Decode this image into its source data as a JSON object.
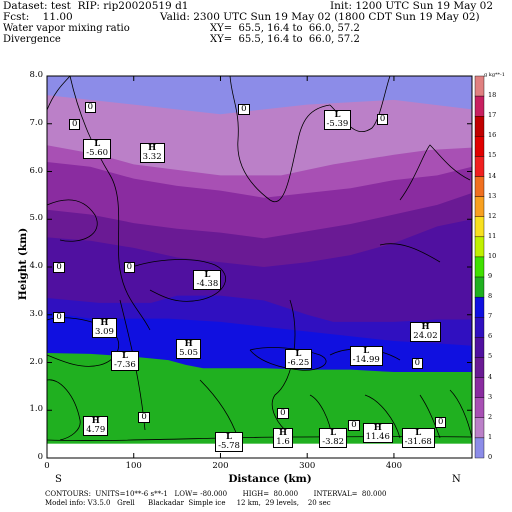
{
  "header": {
    "dataset": "Dataset: test  RIP: rip20020519 d1",
    "init": "Init: 1200 UTC Sun 19 May 02",
    "fcst": "Fcst:    11.00",
    "valid": "Valid: 2300 UTC Sun 19 May 02 (1800 CDT Sun 19 May 02)",
    "field1": "Water vapor mixing ratio",
    "xy1": "XY=  65.5, 16.4 to  66.0, 57.2",
    "field2": "Divergence",
    "xy2": "XY=  65.5, 16.4 to  66.0, 57.2"
  },
  "footer": {
    "contours": "CONTOURS:  UNITS=10**-6 s**-1   LOW= -80.000       HIGH=  80.000       INTERVAL=  80.000",
    "model": "Model info: V3.5.0   Grell      Blackadar  Simple ice     12 km,  29 levels,    20 sec"
  },
  "axis_ends": {
    "left": "S",
    "right": "N"
  },
  "colorbar": {
    "unit": "g kg**-1",
    "labels": [
      "18",
      "17",
      "16",
      "15",
      "14",
      "13",
      "12",
      "11",
      "10",
      "9",
      "8",
      "7",
      "6",
      "5",
      "4",
      "3",
      "2",
      "1",
      "0"
    ]
  },
  "colors": {
    "c18": "#e08080",
    "c17": "#c82060",
    "c16": "#c00000",
    "c15": "#e00000",
    "c14": "#f02020",
    "c13": "#f07020",
    "c12": "#f8a020",
    "c11": "#f8e020",
    "c10": "#c0f000",
    "c9": "#40e000",
    "c8": "#20b020",
    "c7": "#1010e0",
    "c6": "#3010c0",
    "c5": "#5010a0",
    "c4": "#6a1a94",
    "c3": "#8a2ca0",
    "c2": "#a850b4",
    "c1": "#bb80c8",
    "c0": "#8c8ce8"
  },
  "labels": [
    {
      "name": "contour-label-0-a",
      "text": "0"
    },
    {
      "name": "contour-label-0-b",
      "text": "0"
    },
    {
      "name": "contour-label-0-c",
      "text": "0"
    },
    {
      "name": "contour-label-0-d",
      "text": "0"
    },
    {
      "name": "contour-label-0-e",
      "text": "0"
    },
    {
      "name": "contour-label-0-f",
      "text": "0"
    },
    {
      "name": "contour-label-0-g",
      "text": "0"
    },
    {
      "name": "contour-label-0-h",
      "text": "0"
    },
    {
      "name": "contour-label-0-i",
      "text": "0"
    },
    {
      "name": "contour-label-0-j",
      "text": "0"
    },
    {
      "name": "contour-label-0-k",
      "text": "0"
    },
    {
      "name": "contour-label-0-l",
      "text": "0"
    }
  ],
  "extrema": [
    {
      "name": "low-label-1",
      "kind": "L",
      "value": "-5.60"
    },
    {
      "name": "high-label-1",
      "kind": "H",
      "value": "3.32"
    },
    {
      "name": "low-label-2",
      "kind": "L",
      "value": "-5.39"
    },
    {
      "name": "low-label-3",
      "kind": "L",
      "value": "-4.38"
    },
    {
      "name": "high-label-2",
      "kind": "H",
      "value": "3.09"
    },
    {
      "name": "low-label-4",
      "kind": "L",
      "value": "-7.36"
    },
    {
      "name": "high-label-3",
      "kind": "H",
      "value": "5.05"
    },
    {
      "name": "low-label-5",
      "kind": "L",
      "value": "-6.25"
    },
    {
      "name": "low-label-6",
      "kind": "L",
      "value": "-14.99"
    },
    {
      "name": "high-label-4",
      "kind": "H",
      "value": "24.02"
    },
    {
      "name": "high-label-5",
      "kind": "H",
      "value": "4.79"
    },
    {
      "name": "low-label-7",
      "kind": "L",
      "value": "-5.78"
    },
    {
      "name": "high-label-6",
      "kind": "H",
      "value": "1.6"
    },
    {
      "name": "low-label-8",
      "kind": "L",
      "value": "-3.82"
    },
    {
      "name": "high-label-7",
      "kind": "H",
      "value": "11.46"
    },
    {
      "name": "low-label-9",
      "kind": "L",
      "value": "-31.68"
    }
  ],
  "chart_data": {
    "type": "heatmap",
    "title": "Water vapor mixing ratio",
    "xlabel": "Distance (km)",
    "ylabel": "Height (km)",
    "xlim": [
      0,
      490
    ],
    "ylim": [
      0,
      8
    ],
    "xticks": [
      0,
      100,
      200,
      300,
      400
    ],
    "xtick_labels": [
      "0",
      "100",
      "200",
      "300",
      "400"
    ],
    "yticks": [
      0,
      1,
      2,
      3,
      4,
      5,
      6,
      7,
      8
    ],
    "ytick_labels": [
      "0",
      "1.0",
      "2.0",
      "3.0",
      "4.0",
      "5.0",
      "6.0",
      "7.0",
      "8.0"
    ],
    "legend": "right",
    "contour_field": "Divergence",
    "contour_interval": 80,
    "layers": [
      {
        "level": 0,
        "top": [
          [
            0,
            7.6
          ],
          [
            100,
            7.4
          ],
          [
            200,
            7.2
          ],
          [
            300,
            7.4
          ],
          [
            400,
            7.5
          ],
          [
            490,
            7.3
          ]
        ]
      },
      {
        "level": 1,
        "top": [
          [
            0,
            6.55
          ],
          [
            60,
            6.35
          ],
          [
            100,
            6.15
          ],
          [
            200,
            5.92
          ],
          [
            270,
            5.92
          ],
          [
            330,
            6.15
          ],
          [
            400,
            6.35
          ],
          [
            440,
            6.45
          ],
          [
            490,
            6.5
          ]
        ]
      },
      {
        "level": 2,
        "top": [
          [
            0,
            6.2
          ],
          [
            50,
            6.1
          ],
          [
            100,
            5.85
          ],
          [
            150,
            5.7
          ],
          [
            200,
            5.6
          ],
          [
            250,
            5.45
          ],
          [
            300,
            5.55
          ],
          [
            350,
            5.65
          ],
          [
            400,
            5.82
          ],
          [
            450,
            5.92
          ],
          [
            490,
            6.1
          ]
        ]
      },
      {
        "level": 3,
        "top": [
          [
            0,
            5.2
          ],
          [
            50,
            5.1
          ],
          [
            100,
            4.92
          ],
          [
            150,
            4.8
          ],
          [
            200,
            4.72
          ],
          [
            250,
            4.6
          ],
          [
            300,
            4.75
          ],
          [
            350,
            4.9
          ],
          [
            400,
            5.1
          ],
          [
            450,
            5.3
          ],
          [
            490,
            5.55
          ]
        ]
      },
      {
        "level": 4,
        "top": [
          [
            0,
            4.62
          ],
          [
            50,
            4.55
          ],
          [
            100,
            4.4
          ],
          [
            150,
            4.2
          ],
          [
            200,
            4.1
          ],
          [
            250,
            4.0
          ],
          [
            300,
            4.1
          ],
          [
            350,
            4.25
          ],
          [
            400,
            4.5
          ],
          [
            450,
            4.85
          ],
          [
            490,
            5.0
          ]
        ]
      },
      {
        "level": 5,
        "top": [
          [
            0,
            3.35
          ],
          [
            60,
            3.25
          ],
          [
            120,
            3.25
          ],
          [
            150,
            3.4
          ],
          [
            200,
            3.4
          ],
          [
            250,
            3.3
          ],
          [
            300,
            3.0
          ],
          [
            330,
            2.85
          ],
          [
            400,
            2.85
          ],
          [
            450,
            2.9
          ],
          [
            490,
            2.9
          ]
        ]
      },
      {
        "level": 6,
        "top": [
          [
            0,
            3.05
          ],
          [
            50,
            2.92
          ],
          [
            100,
            2.92
          ],
          [
            140,
            2.92
          ],
          [
            200,
            2.85
          ],
          [
            250,
            2.75
          ],
          [
            300,
            2.65
          ],
          [
            350,
            2.55
          ],
          [
            400,
            2.45
          ],
          [
            450,
            2.4
          ],
          [
            490,
            2.35
          ]
        ]
      },
      {
        "level": 7,
        "top": [
          [
            0,
            2.2
          ],
          [
            50,
            2.18
          ],
          [
            100,
            2.12
          ],
          [
            140,
            2.05
          ],
          [
            160,
            1.95
          ],
          [
            180,
            1.88
          ],
          [
            250,
            1.88
          ],
          [
            300,
            1.85
          ],
          [
            350,
            1.85
          ],
          [
            400,
            1.8
          ],
          [
            490,
            1.8
          ]
        ]
      }
    ],
    "extrema_points": [
      {
        "kind": "L",
        "value": -5.6,
        "x": 58,
        "y": 6.5
      },
      {
        "kind": "H",
        "value": 3.32,
        "x": 123,
        "y": 6.4
      },
      {
        "kind": "L",
        "value": -5.39,
        "x": 335,
        "y": 7.1
      },
      {
        "kind": "L",
        "value": -4.38,
        "x": 185,
        "y": 3.75
      },
      {
        "kind": "H",
        "value": 3.09,
        "x": 68,
        "y": 2.75
      },
      {
        "kind": "L",
        "value": -7.36,
        "x": 90,
        "y": 2.05
      },
      {
        "kind": "H",
        "value": 5.05,
        "x": 165,
        "y": 2.3
      },
      {
        "kind": "L",
        "value": -6.25,
        "x": 290,
        "y": 2.1
      },
      {
        "kind": "L",
        "value": -14.99,
        "x": 365,
        "y": 2.15
      },
      {
        "kind": "H",
        "value": 24.02,
        "x": 435,
        "y": 2.65
      },
      {
        "kind": "H",
        "value": 4.79,
        "x": 58,
        "y": 0.7
      },
      {
        "kind": "L",
        "value": -5.78,
        "x": 210,
        "y": 0.35
      },
      {
        "kind": "H",
        "value": 1.6,
        "x": 277,
        "y": 0.45
      },
      {
        "kind": "L",
        "value": -3.82,
        "x": 330,
        "y": 0.45
      },
      {
        "kind": "H",
        "value": 11.46,
        "x": 380,
        "y": 0.55
      },
      {
        "kind": "L",
        "value": -31.68,
        "x": 425,
        "y": 0.45
      }
    ]
  }
}
